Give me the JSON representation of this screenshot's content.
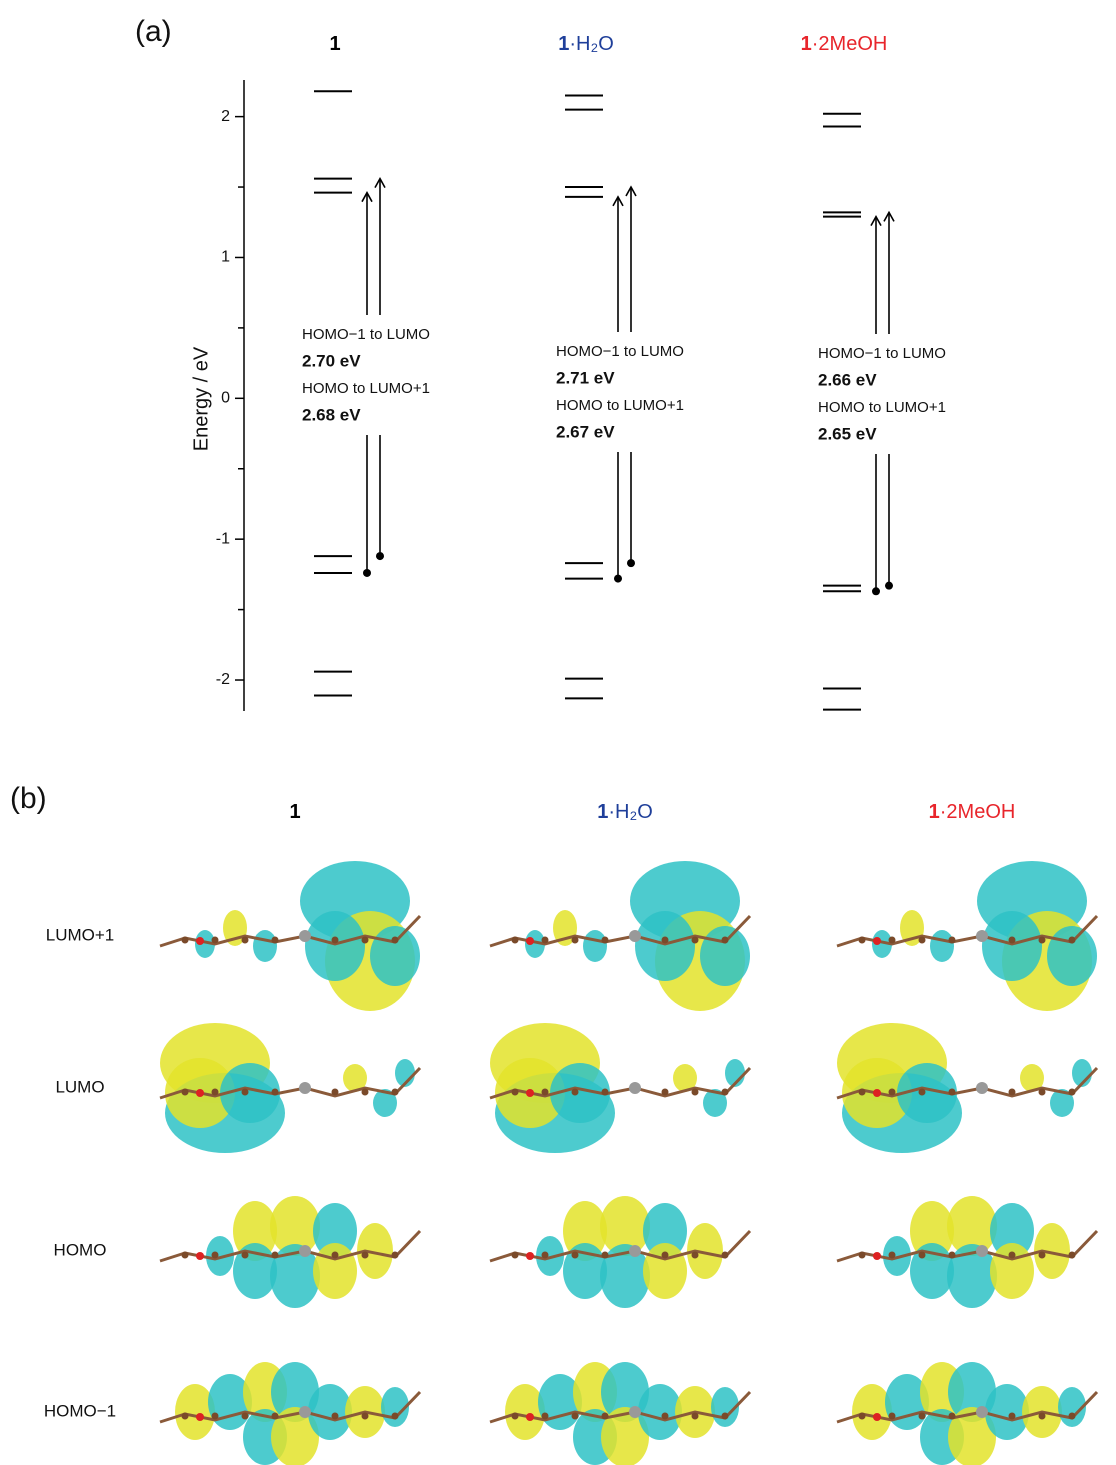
{
  "chart_data": {
    "type": "energy-levels",
    "panel_label": "(a)",
    "ylabel": "Energy / eV",
    "ylim": [
      -2.22,
      2.26
    ],
    "yticks": [
      -2,
      -1,
      0,
      1,
      2
    ],
    "yticks_minor": [
      -1.5,
      -0.5,
      0.5,
      1.5
    ],
    "series": [
      {
        "name": [
          "1",
          ""
        ],
        "color": "#000000",
        "levels": [
          2.18,
          1.56,
          1.46,
          -1.12,
          -1.24,
          -1.94,
          -2.11
        ],
        "transitions": [
          {
            "name": "HOMO−1 to LUMO",
            "value": 2.7,
            "value_label": "2.70 eV"
          },
          {
            "name": "HOMO to LUMO+1",
            "value": 2.68,
            "value_label": "2.68 eV"
          }
        ]
      },
      {
        "name": [
          "1",
          "·H₂O"
        ],
        "color": "#1f3f9a",
        "levels": [
          2.15,
          2.05,
          1.5,
          1.43,
          -1.17,
          -1.28,
          -1.99,
          -2.13
        ],
        "transitions": [
          {
            "name": "HOMO−1 to LUMO",
            "value": 2.71,
            "value_label": "2.71 eV"
          },
          {
            "name": "HOMO to LUMO+1",
            "value": 2.67,
            "value_label": "2.67 eV"
          }
        ]
      },
      {
        "name": [
          "1",
          "·2MeOH"
        ],
        "color": "#e8252b",
        "levels": [
          2.02,
          1.93,
          1.32,
          1.29,
          -1.33,
          -1.37,
          -2.06,
          -2.21
        ],
        "transitions": [
          {
            "name": "HOMO−1 to LUMO",
            "value": 2.66,
            "value_label": "2.66 eV"
          },
          {
            "name": "HOMO to LUMO+1",
            "value": 2.65,
            "value_label": "2.65 eV"
          }
        ]
      }
    ]
  },
  "panel_b": {
    "label": "(b)",
    "columns": [
      [
        "1",
        ""
      ],
      [
        "1",
        "·H₂O"
      ],
      [
        "1",
        "·2MeOH"
      ]
    ],
    "rows": [
      "LUMO+1",
      "LUMO",
      "HOMO",
      "HOMO−1"
    ]
  }
}
